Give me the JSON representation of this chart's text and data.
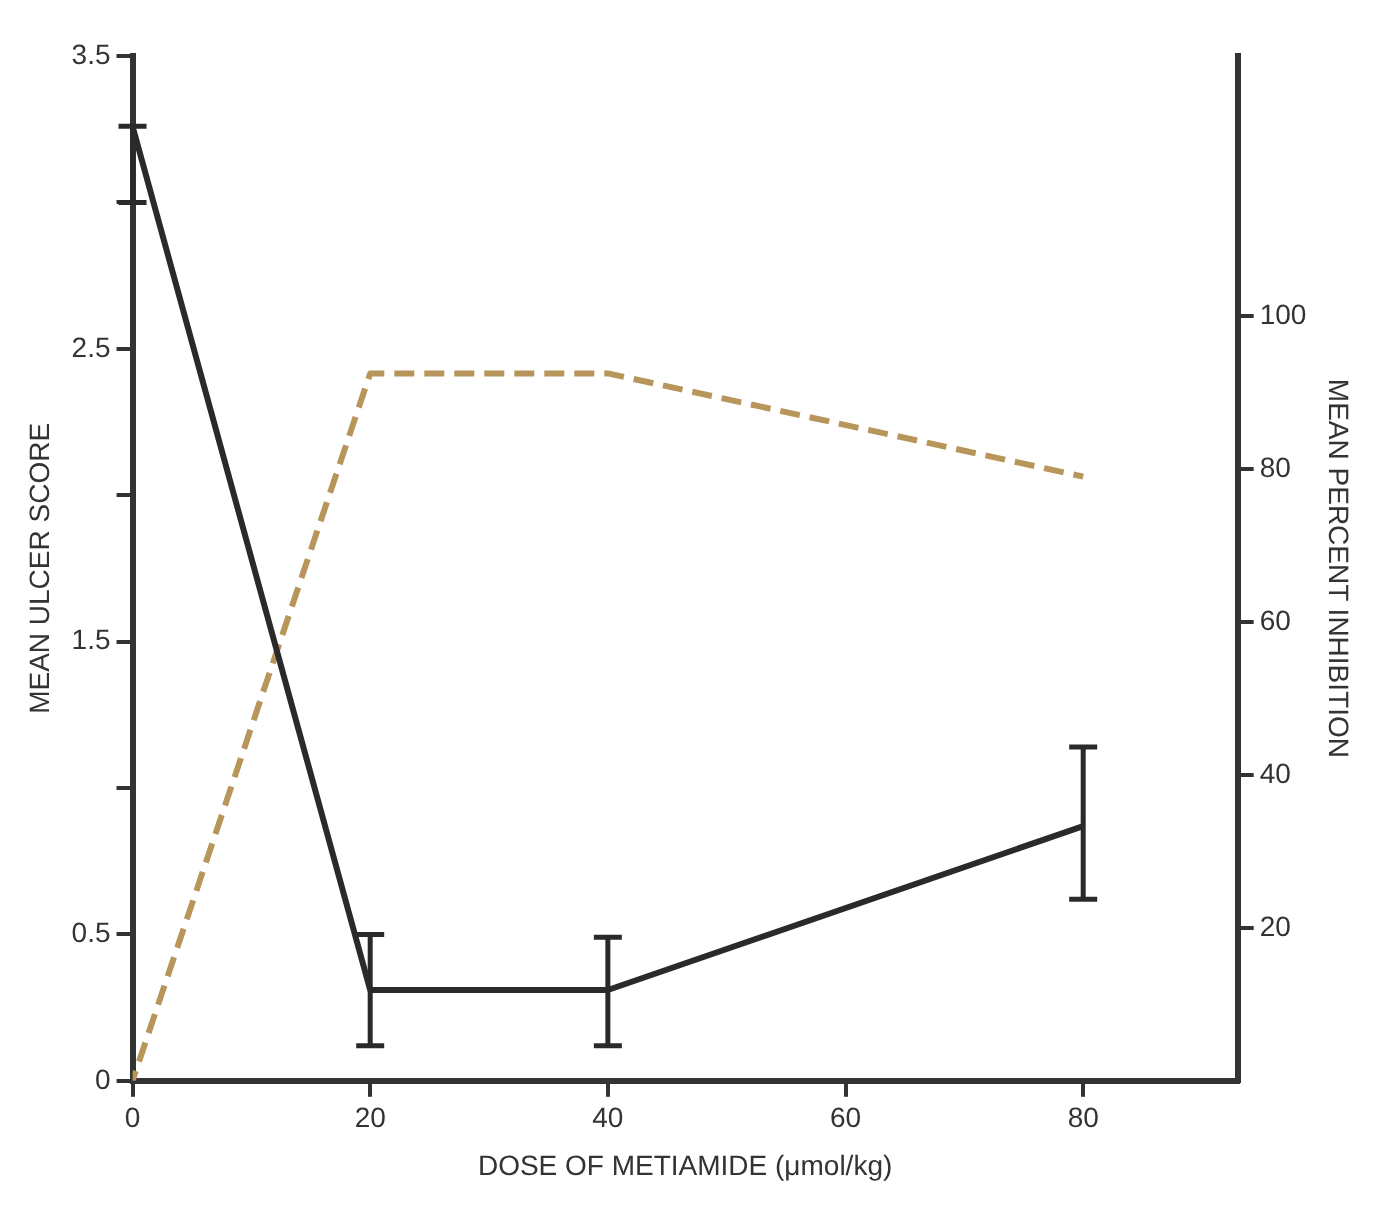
{
  "chart_data": {
    "type": "line",
    "xlabel": "DOSE OF METIAMIDE (μmol/kg)",
    "ylabel": "MEAN ULCER SCORE",
    "y2label": "MEAN PERCENT INHIBITION",
    "x": [
      0,
      20,
      40,
      80
    ],
    "xlim": [
      0,
      93
    ],
    "xticks": [
      0,
      20,
      40,
      60,
      80
    ],
    "ylim": [
      0,
      3.5
    ],
    "yticks": [
      0,
      0.5,
      {
        "value": 1,
        "label": null
      },
      1.5,
      {
        "value": 2,
        "label": null
      },
      2.5,
      {
        "value": 3,
        "label": null
      },
      3.5
    ],
    "y2lim": [
      0,
      134
    ],
    "y2ticks": [
      20,
      40,
      60,
      80,
      100
    ],
    "series": [
      {
        "color": "#2a2a2a",
        "values": [
          3.26,
          0.31,
          0.31,
          0.87
        ],
        "errors": [
          [
            3.0,
            3.26
          ],
          [
            0.12,
            0.5
          ],
          [
            0.12,
            0.49
          ],
          [
            0.62,
            1.14
          ]
        ],
        "line_style": "solid"
      },
      {
        "color": "#b8955a",
        "values": [
          0,
          92.5,
          92.5,
          79
        ],
        "axis": "y2",
        "line_style": "dashed"
      }
    ],
    "grid": false,
    "legend": false,
    "marker": "none"
  }
}
